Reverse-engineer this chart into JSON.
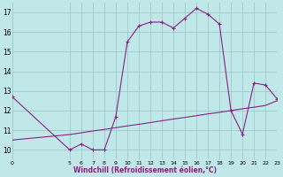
{
  "xlabel": "Windchill (Refroidissement éolien,°C)",
  "bg_color": "#c0e8e8",
  "grid_color": "#a0c8c8",
  "line_color": "#882288",
  "line1_x": [
    0,
    5,
    6,
    7,
    8,
    9,
    10,
    11,
    12,
    13,
    14,
    15,
    16,
    17,
    18,
    19,
    20,
    21,
    22,
    23
  ],
  "line1_y": [
    12.7,
    10.0,
    10.3,
    10.0,
    10.0,
    11.7,
    15.5,
    16.3,
    16.5,
    16.5,
    16.2,
    16.7,
    17.2,
    16.9,
    16.4,
    12.0,
    10.8,
    13.4,
    13.3,
    12.6
  ],
  "line2_x": [
    0,
    5,
    6,
    7,
    8,
    9,
    10,
    11,
    12,
    13,
    14,
    15,
    16,
    17,
    18,
    19,
    20,
    21,
    22,
    23
  ],
  "line2_y": [
    10.5,
    10.78,
    10.87,
    10.96,
    11.04,
    11.13,
    11.22,
    11.3,
    11.39,
    11.48,
    11.57,
    11.65,
    11.74,
    11.83,
    11.91,
    12.0,
    12.09,
    12.17,
    12.26,
    12.5
  ],
  "xlim": [
    0,
    23
  ],
  "ylim": [
    9.5,
    17.5
  ],
  "xticks": [
    0,
    5,
    6,
    7,
    8,
    9,
    10,
    11,
    12,
    13,
    14,
    15,
    16,
    17,
    18,
    19,
    20,
    21,
    22,
    23
  ],
  "yticks": [
    10,
    11,
    12,
    13,
    14,
    15,
    16,
    17
  ],
  "marker": "+"
}
